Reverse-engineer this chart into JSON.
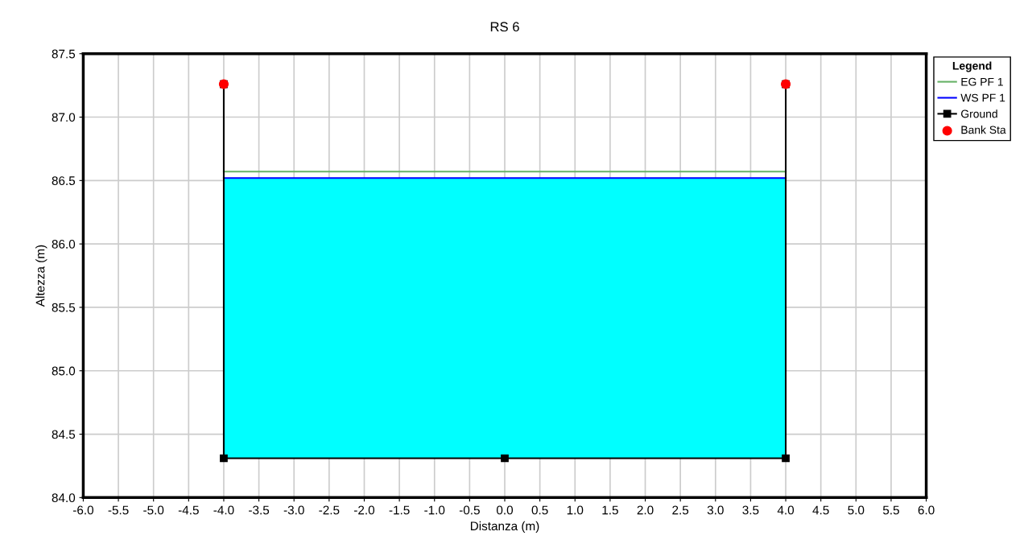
{
  "chart_data": {
    "type": "line",
    "title": "RS 6",
    "xlabel": "Distanza (m)",
    "ylabel": "Altezza (m)",
    "legend_title": "Legend",
    "legend": "right",
    "grid": true,
    "xlim": [
      -6,
      6
    ],
    "xticks": [
      {
        "value": -6,
        "label": "-6.0"
      },
      {
        "value": -5.5,
        "label": "-5.5"
      },
      {
        "value": -5,
        "label": "-5.0"
      },
      {
        "value": -4.5,
        "label": "-4.5"
      },
      {
        "value": -4,
        "label": "-4.0"
      },
      {
        "value": -3.5,
        "label": "-3.5"
      },
      {
        "value": -3,
        "label": "-3.0"
      },
      {
        "value": -2.5,
        "label": "-2.5"
      },
      {
        "value": -2,
        "label": "-2.0"
      },
      {
        "value": -1.5,
        "label": "-1.5"
      },
      {
        "value": -1,
        "label": "-1.0"
      },
      {
        "value": -0.5,
        "label": "-0.5"
      },
      {
        "value": 0,
        "label": "0.0"
      },
      {
        "value": 0.5,
        "label": "0.5"
      },
      {
        "value": 1,
        "label": "1.0"
      },
      {
        "value": 1.5,
        "label": "1.5"
      },
      {
        "value": 2,
        "label": "2.0"
      },
      {
        "value": 2.5,
        "label": "2.5"
      },
      {
        "value": 3,
        "label": "3.0"
      },
      {
        "value": 3.5,
        "label": "3.5"
      },
      {
        "value": 4,
        "label": "4.0"
      },
      {
        "value": 4.5,
        "label": "4.5"
      },
      {
        "value": 5,
        "label": "5.0"
      },
      {
        "value": 5.5,
        "label": "5.5"
      },
      {
        "value": 6,
        "label": "6.0"
      }
    ],
    "ylim": [
      84,
      87.5
    ],
    "yticks": [
      {
        "value": 84,
        "label": "84.0"
      },
      {
        "value": 84.5,
        "label": "84.5"
      },
      {
        "value": 85,
        "label": "85.0"
      },
      {
        "value": 85.5,
        "label": "85.5"
      },
      {
        "value": 86,
        "label": "86.0"
      },
      {
        "value": 86.5,
        "label": "86.5"
      },
      {
        "value": 87,
        "label": "87.0"
      },
      {
        "value": 87.5,
        "label": "87.5"
      }
    ],
    "series": [
      {
        "name": "EG PF 1",
        "color": "#66b266",
        "x": [
          -4,
          4
        ],
        "values": [
          86.57,
          86.57
        ],
        "marker": "none"
      },
      {
        "name": "WS PF 1",
        "color": "#0000ff",
        "x": [
          -4,
          4
        ],
        "values": [
          86.52,
          86.52
        ],
        "lower": [
          84.31,
          84.31
        ],
        "upper": [
          86.52,
          86.52
        ],
        "marker": "none"
      },
      {
        "name": "Ground",
        "color": "#000000",
        "x": [
          -4,
          -4,
          0,
          4,
          4
        ],
        "values": [
          87.26,
          84.31,
          84.31,
          84.31,
          87.26
        ],
        "marker": "square"
      },
      {
        "name": "Bank Sta",
        "type": "scatter",
        "color": "#ff0000",
        "x": [
          -4,
          4
        ],
        "values": [
          87.26,
          87.26
        ],
        "marker": "circle"
      }
    ]
  }
}
